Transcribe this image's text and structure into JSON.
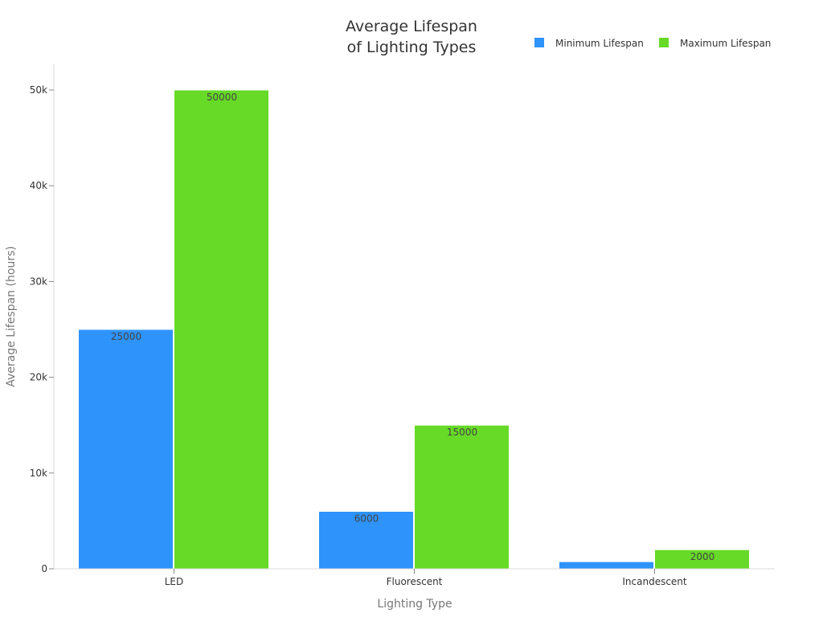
{
  "chart_data": {
    "type": "bar",
    "title_lines": [
      "Average Lifespan",
      "of Lighting Types"
    ],
    "xlabel": "Lighting Type",
    "ylabel": "Average Lifespan (hours)",
    "categories": [
      "LED",
      "Fluorescent",
      "Incandescent"
    ],
    "series": [
      {
        "name": "Minimum Lifespan",
        "color": "#2E93FA",
        "values": [
          25000,
          6000,
          750
        ],
        "labels": [
          "25000",
          "6000",
          ""
        ]
      },
      {
        "name": "Maximum Lifespan",
        "color": "#66DA26",
        "values": [
          50000,
          15000,
          2000
        ],
        "labels": [
          "50000",
          "15000",
          "2000"
        ]
      }
    ],
    "ylim": [
      0,
      52500
    ],
    "yticks": [
      0,
      10000,
      20000,
      30000,
      40000,
      50000
    ],
    "ytick_labels": [
      "0",
      "10k",
      "20k",
      "30k",
      "40k",
      "50k"
    ],
    "grid": false,
    "legend_position": "top-right"
  }
}
